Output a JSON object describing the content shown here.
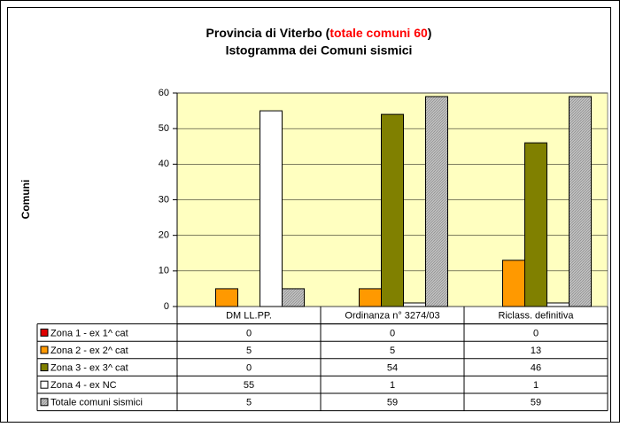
{
  "chart_data": {
    "type": "bar",
    "title_parts": [
      "Provincia di Viterbo (",
      "totale comuni 60",
      ")"
    ],
    "subtitle": "Istogramma dei Comuni sismici",
    "ylabel": "Comuni",
    "categories": [
      "DM LL.PP.",
      "Ordinanza n° 3274/03",
      "Riclass. definitiva"
    ],
    "series": [
      {
        "name": "Zona 1 - ex 1^ cat",
        "color": "#e00000",
        "values": [
          0,
          0,
          0
        ]
      },
      {
        "name": "Zona 2 - ex 2^ cat",
        "color": "#ff9900",
        "values": [
          5,
          5,
          13
        ]
      },
      {
        "name": "Zona 3 - ex 3^ cat",
        "color": "#808000",
        "values": [
          0,
          54,
          46
        ]
      },
      {
        "name": "Zona 4 - ex NC",
        "color": "#ffffff",
        "values": [
          55,
          1,
          1
        ]
      },
      {
        "name": "Totale comuni sismici",
        "color": "#c0c0c0",
        "pattern": "hatch",
        "values": [
          5,
          59,
          59
        ]
      }
    ],
    "ylim": [
      0,
      60
    ],
    "yticks": [
      0,
      10,
      20,
      30,
      40,
      50,
      60
    ],
    "grid": true,
    "plot_background": "#ffffc0",
    "data_table": true
  }
}
